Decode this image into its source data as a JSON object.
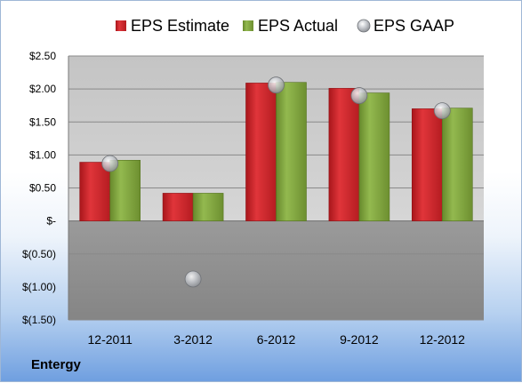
{
  "company": "Entergy",
  "colors": {
    "estimate": "#cc2127",
    "actual": "#7da13a",
    "gaap": "#b9bcc2",
    "positive_area": "#cfcfcf",
    "negative_area": "#8f8f8f"
  },
  "chart_data": {
    "type": "bar",
    "title": "",
    "xlabel": "",
    "ylabel": "",
    "categories": [
      "12-2011",
      "3-2012",
      "6-2012",
      "9-2012",
      "12-2012"
    ],
    "series": [
      {
        "name": "EPS Estimate",
        "kind": "bar",
        "values": [
          0.89,
          0.42,
          2.09,
          2.01,
          1.7
        ]
      },
      {
        "name": "EPS Actual",
        "kind": "bar",
        "values": [
          0.92,
          0.42,
          2.1,
          1.94,
          1.71
        ]
      },
      {
        "name": "EPS GAAP",
        "kind": "point",
        "values": [
          0.87,
          -0.88,
          2.06,
          1.9,
          1.67
        ]
      }
    ],
    "ylim": [
      -1.5,
      2.5
    ],
    "yticks": [
      2.5,
      2.0,
      1.5,
      1.0,
      0.5,
      0,
      -0.5,
      -1.0,
      -1.5
    ],
    "ytick_labels": [
      "$2.50",
      "$2.00",
      "$1.50",
      "$1.00",
      "$0.50",
      "$-",
      "$(0.50)",
      "$(1.00)",
      "$(1.50)"
    ],
    "grid": true,
    "legend": "top"
  }
}
